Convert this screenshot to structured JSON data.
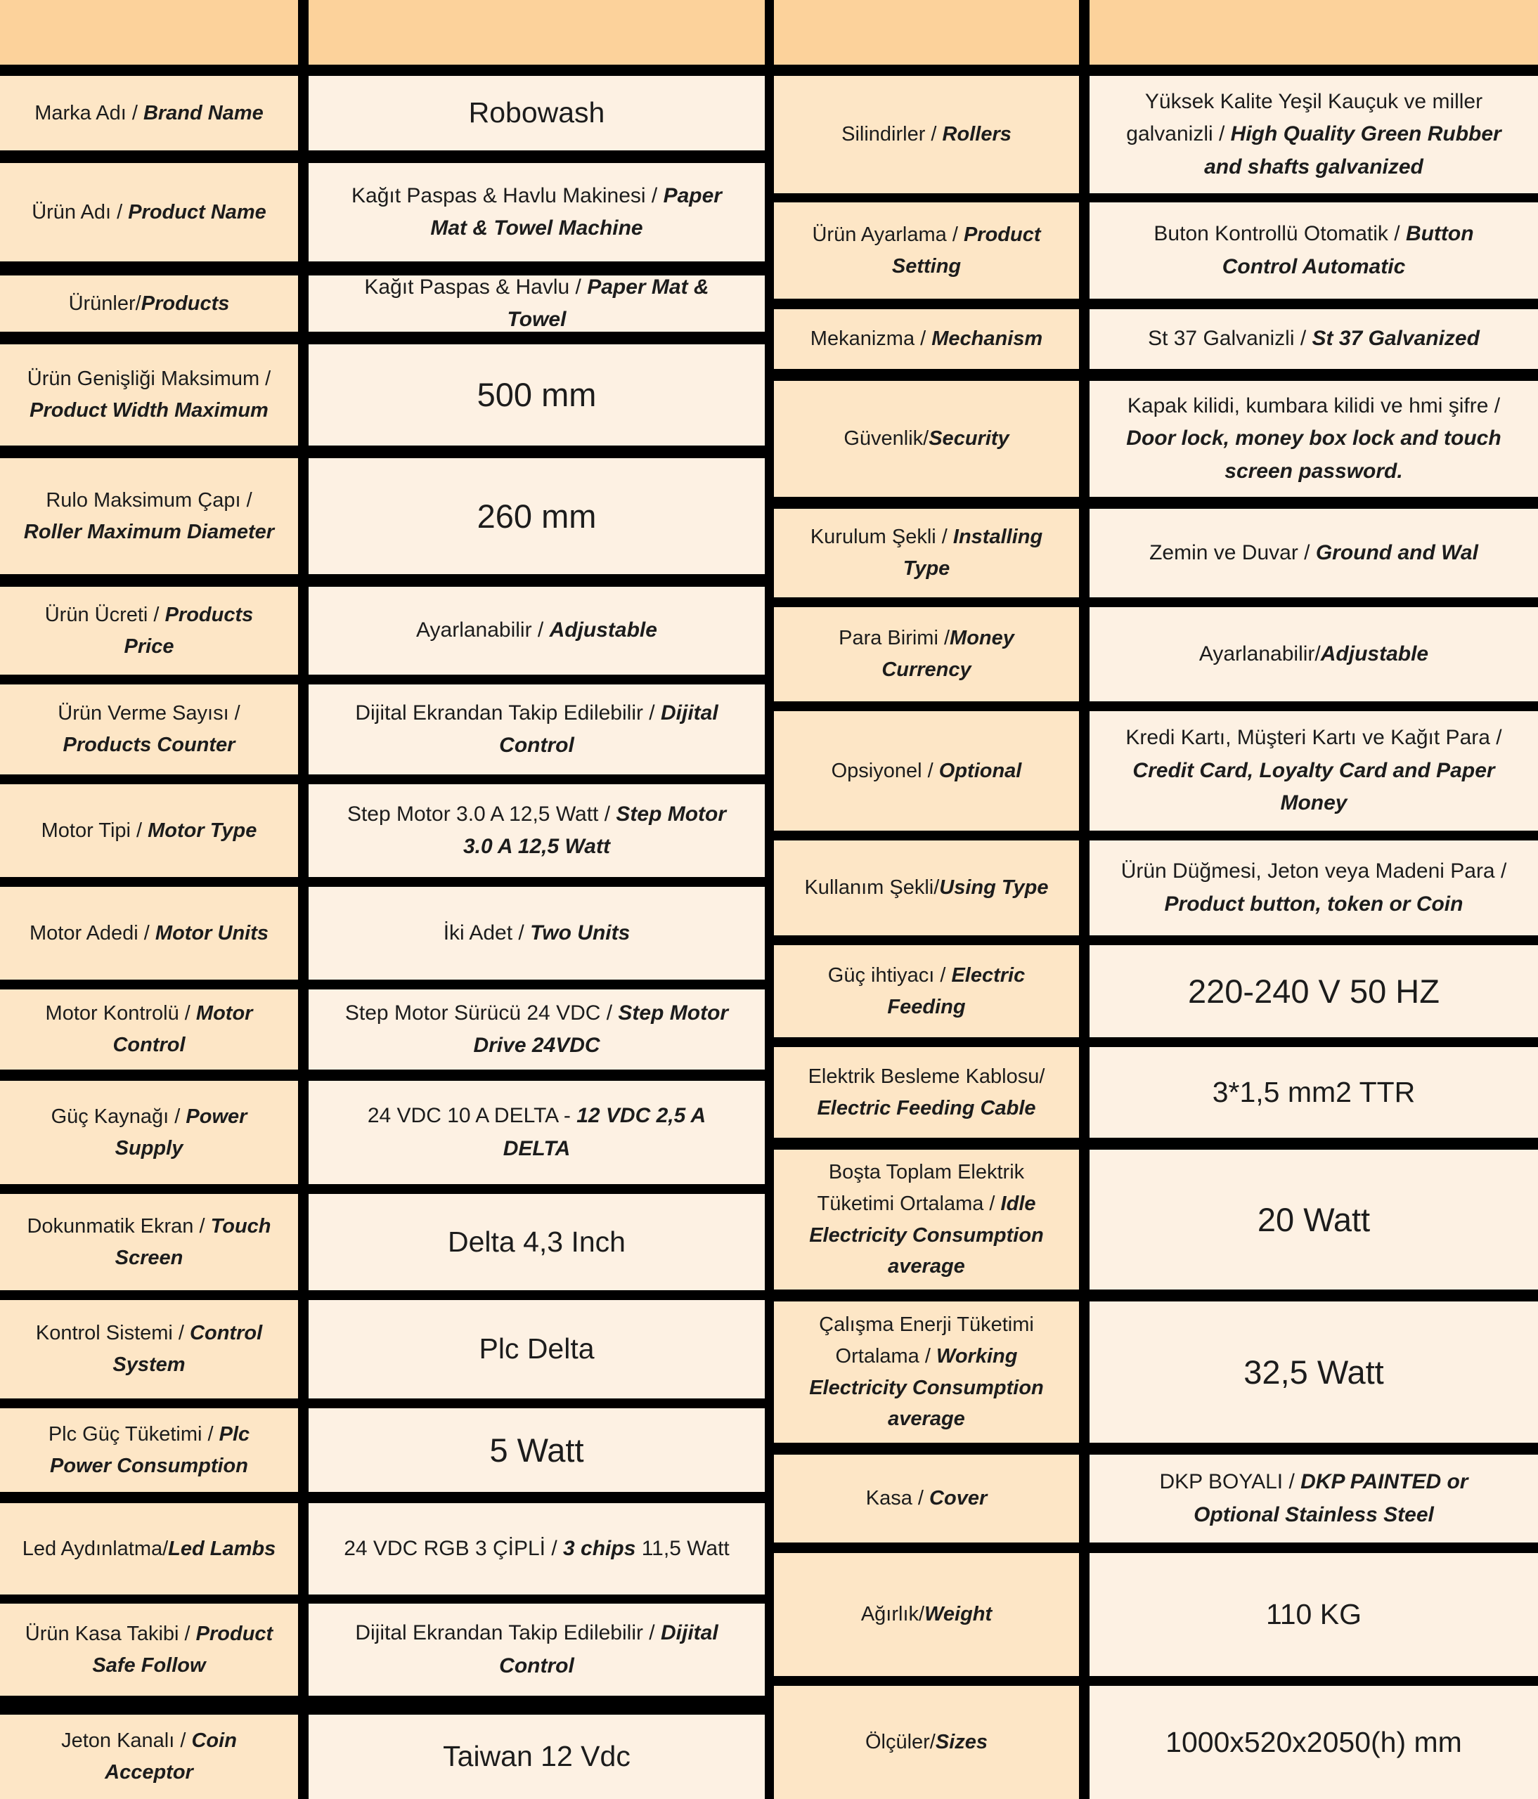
{
  "colors": {
    "background": "#000000",
    "header_bg": "#fcd29b",
    "label_bg": "#fde6c6",
    "value_bg": "#fdf1e3",
    "text": "#1c1c1c"
  },
  "table": {
    "left": {
      "rows": [
        {
          "label": [
            {
              "t": "Marka Adı / ",
              "s": "r"
            },
            {
              "t": "Brand Name",
              "s": "bi"
            }
          ],
          "value": [
            {
              "t": "Robowash",
              "s": "r"
            }
          ],
          "value_size": "lg"
        },
        {
          "label": [
            {
              "t": "Ürün Adı / ",
              "s": "r"
            },
            {
              "t": "Product Name",
              "s": "bi"
            }
          ],
          "value": [
            {
              "t": "Kağıt Paspas & Havlu Makinesi / ",
              "s": "r"
            },
            {
              "t": "Paper Mat & Towel Machine",
              "s": "bi"
            }
          ],
          "value_size": "md"
        },
        {
          "label": [
            {
              "t": "Ürünler/",
              "s": "r"
            },
            {
              "t": "Products",
              "s": "bi"
            }
          ],
          "value": [
            {
              "t": "Kağıt Paspas & Havlu / ",
              "s": "r"
            },
            {
              "t": "Paper Mat & Towel",
              "s": "bi"
            }
          ],
          "value_size": "md"
        },
        {
          "label": [
            {
              "t": "Ürün Genişliği Maksimum / ",
              "s": "r"
            },
            {
              "t": "Product Width Maximum",
              "s": "bi"
            }
          ],
          "value": [
            {
              "t": "500 mm",
              "s": "r"
            }
          ],
          "value_size": "xl"
        },
        {
          "label": [
            {
              "t": "Rulo Maksimum Çapı / ",
              "s": "r"
            },
            {
              "t": "Roller Maximum Diameter",
              "s": "bi"
            }
          ],
          "value": [
            {
              "t": "260 mm",
              "s": "r"
            }
          ],
          "value_size": "xl"
        },
        {
          "label": [
            {
              "t": "Ürün Ücreti / ",
              "s": "r"
            },
            {
              "t": "Products Price",
              "s": "bi"
            }
          ],
          "value": [
            {
              "t": "Ayarlanabilir / ",
              "s": "r"
            },
            {
              "t": "Adjustable",
              "s": "bi"
            }
          ],
          "value_size": "md"
        },
        {
          "label": [
            {
              "t": "Ürün Verme Sayısı / ",
              "s": "r"
            },
            {
              "t": "Products Counter",
              "s": "bi"
            }
          ],
          "value": [
            {
              "t": "Dijital Ekrandan Takip Edilebilir / ",
              "s": "r"
            },
            {
              "t": "Dijital Control",
              "s": "bi"
            }
          ],
          "value_size": "md"
        },
        {
          "label": [
            {
              "t": "Motor Tipi / ",
              "s": "r"
            },
            {
              "t": "Motor Type",
              "s": "bi"
            }
          ],
          "value": [
            {
              "t": "Step Motor 3.0 A 12,5 Watt / ",
              "s": "r"
            },
            {
              "t": "Step Motor 3.0 A 12,5 Watt",
              "s": "bi"
            }
          ],
          "value_size": "md"
        },
        {
          "label": [
            {
              "t": "Motor Adedi / ",
              "s": "r"
            },
            {
              "t": "Motor Units",
              "s": "bi"
            }
          ],
          "value": [
            {
              "t": "İki Adet / ",
              "s": "r"
            },
            {
              "t": "Two Units",
              "s": "bi"
            }
          ],
          "value_size": "md"
        },
        {
          "label": [
            {
              "t": "Motor Kontrolü / ",
              "s": "r"
            },
            {
              "t": "Motor Control",
              "s": "bi"
            }
          ],
          "value": [
            {
              "t": "Step Motor Sürücü 24 VDC / ",
              "s": "r"
            },
            {
              "t": "Step Motor Drive 24VDC",
              "s": "bi"
            }
          ],
          "value_size": "md"
        },
        {
          "label": [
            {
              "t": "Güç Kaynağı / ",
              "s": "r"
            },
            {
              "t": "Power Supply",
              "s": "bi"
            }
          ],
          "value": [
            {
              "t": "24 VDC 10 A DELTA - ",
              "s": "r"
            },
            {
              "t": "12 VDC 2,5 A DELTA",
              "s": "bi"
            }
          ],
          "value_size": "md"
        },
        {
          "label": [
            {
              "t": "Dokunmatik Ekran / ",
              "s": "r"
            },
            {
              "t": "Touch Screen",
              "s": "bi"
            }
          ],
          "value": [
            {
              "t": "Delta 4,3 Inch",
              "s": "r"
            }
          ],
          "value_size": "lg"
        },
        {
          "label": [
            {
              "t": "Kontrol Sistemi / ",
              "s": "r"
            },
            {
              "t": "Control System",
              "s": "bi"
            }
          ],
          "value": [
            {
              "t": "Plc Delta",
              "s": "r"
            }
          ],
          "value_size": "lg"
        },
        {
          "label": [
            {
              "t": "Plc Güç Tüketimi / ",
              "s": "r"
            },
            {
              "t": "Plc Power Consumption",
              "s": "bi"
            }
          ],
          "value": [
            {
              "t": "5 Watt",
              "s": "r"
            }
          ],
          "value_size": "xl"
        },
        {
          "label": [
            {
              "t": "Led Aydınlatma/",
              "s": "r"
            },
            {
              "t": "Led Lambs",
              "s": "bi"
            }
          ],
          "value": [
            {
              "t": "24 VDC RGB 3 ÇİPLİ / ",
              "s": "r"
            },
            {
              "t": "3 chips",
              "s": "bi"
            },
            {
              "t": " 11,5 Watt",
              "s": "r"
            }
          ],
          "value_size": "md"
        },
        {
          "label": [
            {
              "t": "Ürün Kasa Takibi / ",
              "s": "r"
            },
            {
              "t": "Product Safe Follow",
              "s": "bi"
            }
          ],
          "value": [
            {
              "t": "Dijital Ekrandan Takip Edilebilir / ",
              "s": "r"
            },
            {
              "t": "Dijital Control",
              "s": "bi"
            }
          ],
          "value_size": "md"
        },
        {
          "label": [
            {
              "t": "Jeton Kanalı / ",
              "s": "r"
            },
            {
              "t": "Coin Acceptor",
              "s": "bi"
            }
          ],
          "value": [
            {
              "t": "Taiwan 12 Vdc",
              "s": "r"
            }
          ],
          "value_size": "lg"
        }
      ]
    },
    "right": {
      "rows": [
        {
          "label": [
            {
              "t": "Silindirler / ",
              "s": "r"
            },
            {
              "t": "Rollers",
              "s": "bi"
            }
          ],
          "value": [
            {
              "t": "Yüksek Kalite Yeşil Kauçuk ve miller galvanizli / ",
              "s": "r"
            },
            {
              "t": "High Quality Green Rubber and shafts galvanized",
              "s": "bi"
            }
          ],
          "value_size": "md"
        },
        {
          "label": [
            {
              "t": "Ürün Ayarlama / ",
              "s": "r"
            },
            {
              "t": "Product Setting",
              "s": "bi"
            }
          ],
          "value": [
            {
              "t": "Buton Kontrollü Otomatik / ",
              "s": "r"
            },
            {
              "t": "Button Control Automatic",
              "s": "bi"
            }
          ],
          "value_size": "md"
        },
        {
          "label": [
            {
              "t": "Mekanizma / ",
              "s": "r"
            },
            {
              "t": "Mechanism",
              "s": "bi"
            }
          ],
          "value": [
            {
              "t": "St 37 Galvanizli / ",
              "s": "r"
            },
            {
              "t": "St 37 Galvanized",
              "s": "bi"
            }
          ],
          "value_size": "md"
        },
        {
          "label": [
            {
              "t": "Güvenlik/",
              "s": "r"
            },
            {
              "t": "Security",
              "s": "bi"
            }
          ],
          "value": [
            {
              "t": "Kapak kilidi, kumbara kilidi ve hmi şifre / ",
              "s": "r"
            },
            {
              "t": "Door lock, money box lock and touch screen password.",
              "s": "bi"
            }
          ],
          "value_size": "md"
        },
        {
          "label": [
            {
              "t": "Kurulum Şekli / ",
              "s": "r"
            },
            {
              "t": "Installing Type",
              "s": "bi"
            }
          ],
          "value": [
            {
              "t": "Zemin ve Duvar / ",
              "s": "r"
            },
            {
              "t": "Ground and Wal",
              "s": "bi"
            }
          ],
          "value_size": "md"
        },
        {
          "label": [
            {
              "t": "Para Birimi /",
              "s": "r"
            },
            {
              "t": "Money Currency",
              "s": "bi"
            }
          ],
          "value": [
            {
              "t": "Ayarlanabilir/",
              "s": "r"
            },
            {
              "t": "Adjustable",
              "s": "bi"
            }
          ],
          "value_size": "md"
        },
        {
          "label": [
            {
              "t": "Opsiyonel / ",
              "s": "r"
            },
            {
              "t": "Optional",
              "s": "bi"
            }
          ],
          "value": [
            {
              "t": "Kredi Kartı, Müşteri Kartı ve Kağıt Para / ",
              "s": "r"
            },
            {
              "t": "Credit Card, Loyalty Card and Paper Money",
              "s": "bi"
            }
          ],
          "value_size": "md"
        },
        {
          "label": [
            {
              "t": "Kullanım Şekli/",
              "s": "r"
            },
            {
              "t": "Using Type",
              "s": "bi"
            }
          ],
          "value": [
            {
              "t": "Ürün Düğmesi, Jeton veya Madeni Para / ",
              "s": "r"
            },
            {
              "t": "Product button, token or Coin",
              "s": "bi"
            }
          ],
          "value_size": "md"
        },
        {
          "label": [
            {
              "t": "Güç ihtiyacı / ",
              "s": "r"
            },
            {
              "t": "Electric Feeding",
              "s": "bi"
            }
          ],
          "value": [
            {
              "t": "220-240 V 50 HZ",
              "s": "r"
            }
          ],
          "value_size": "xl"
        },
        {
          "label": [
            {
              "t": "Elektrik Besleme Kablosu/ ",
              "s": "r"
            },
            {
              "t": "Electric Feeding Cable",
              "s": "bi"
            }
          ],
          "value": [
            {
              "t": "3*1,5 mm2 TTR",
              "s": "r"
            }
          ],
          "value_size": "lg"
        },
        {
          "label": [
            {
              "t": "Boşta Toplam Elektrik Tüketimi Ortalama / ",
              "s": "r"
            },
            {
              "t": "Idle Electricity Consumption average",
              "s": "bi"
            }
          ],
          "value": [
            {
              "t": "20 Watt",
              "s": "r"
            }
          ],
          "value_size": "xl"
        },
        {
          "label": [
            {
              "t": "Çalışma Enerji Tüketimi Ortalama / ",
              "s": "r"
            },
            {
              "t": "Working Electricity Consumption average",
              "s": "bi"
            }
          ],
          "value": [
            {
              "t": "32,5 Watt",
              "s": "r"
            }
          ],
          "value_size": "xl"
        },
        {
          "label": [
            {
              "t": "Kasa / ",
              "s": "r"
            },
            {
              "t": "Cover",
              "s": "bi"
            }
          ],
          "value": [
            {
              "t": "DKP BOYALI / ",
              "s": "r"
            },
            {
              "t": "DKP PAINTED or Optional Stainless Steel",
              "s": "bi"
            }
          ],
          "value_size": "md"
        },
        {
          "label": [
            {
              "t": "Ağırlık/",
              "s": "r"
            },
            {
              "t": "Weight",
              "s": "bi"
            }
          ],
          "value": [
            {
              "t": "110 KG",
              "s": "r"
            }
          ],
          "value_size": "lg"
        },
        {
          "label": [
            {
              "t": "Ölçüler/",
              "s": "r"
            },
            {
              "t": "Sizes",
              "s": "bi"
            }
          ],
          "value": [
            {
              "t": "1000x520x2050(h) mm",
              "s": "r"
            }
          ],
          "value_size": "lg"
        }
      ]
    }
  }
}
